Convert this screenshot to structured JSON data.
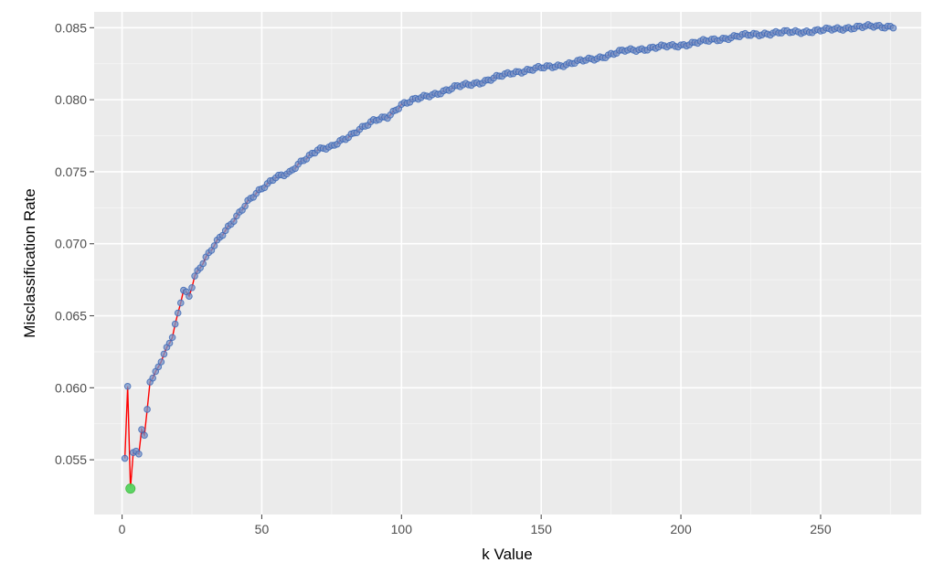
{
  "chart_data": {
    "type": "line",
    "title": "",
    "xlabel": "k Value",
    "ylabel": "Misclassification Rate",
    "xlim": [
      -10,
      286
    ],
    "ylim": [
      0.0512,
      0.0861
    ],
    "x_ticks": [
      0,
      50,
      100,
      150,
      200,
      250
    ],
    "x_tick_labels": [
      "0",
      "50",
      "100",
      "150",
      "200",
      "250"
    ],
    "y_ticks": [
      0.055,
      0.06,
      0.065,
      0.07,
      0.075,
      0.08,
      0.085
    ],
    "y_tick_labels": [
      "0.055",
      "0.060",
      "0.065",
      "0.070",
      "0.075",
      "0.080",
      "0.085"
    ],
    "grid": true,
    "colors": {
      "panel": "#ebebeb",
      "grid_major": "#ffffff",
      "line": "#ff0000",
      "points_fill": "#7896c8",
      "points_stroke": "#3a64b4",
      "highlight": "#55dd55"
    },
    "anchors": [
      [
        1,
        0.0551
      ],
      [
        2,
        0.0601
      ],
      [
        3,
        0.053
      ],
      [
        4,
        0.0555
      ],
      [
        5,
        0.0556
      ],
      [
        6,
        0.0554
      ],
      [
        7,
        0.0571
      ],
      [
        8,
        0.0567
      ],
      [
        9,
        0.0585
      ],
      [
        10,
        0.0604
      ],
      [
        12,
        0.0611
      ],
      [
        15,
        0.0623
      ],
      [
        18,
        0.0635
      ],
      [
        20,
        0.0651
      ],
      [
        22,
        0.0668
      ],
      [
        24,
        0.0664
      ],
      [
        26,
        0.0678
      ],
      [
        30,
        0.069
      ],
      [
        35,
        0.0704
      ],
      [
        40,
        0.0717
      ],
      [
        45,
        0.0729
      ],
      [
        50,
        0.0738
      ],
      [
        55,
        0.0747
      ],
      [
        60,
        0.0749
      ],
      [
        65,
        0.0758
      ],
      [
        70,
        0.0766
      ],
      [
        75,
        0.0767
      ],
      [
        80,
        0.0773
      ],
      [
        85,
        0.078
      ],
      [
        90,
        0.0785
      ],
      [
        95,
        0.0788
      ],
      [
        100,
        0.0797
      ],
      [
        110,
        0.0803
      ],
      [
        120,
        0.0809
      ],
      [
        130,
        0.0813
      ],
      [
        140,
        0.0819
      ],
      [
        150,
        0.0822
      ],
      [
        160,
        0.0825
      ],
      [
        170,
        0.0829
      ],
      [
        180,
        0.0834
      ],
      [
        190,
        0.0836
      ],
      [
        200,
        0.0838
      ],
      [
        210,
        0.0841
      ],
      [
        220,
        0.0844
      ],
      [
        230,
        0.0846
      ],
      [
        240,
        0.0847
      ],
      [
        250,
        0.0848
      ],
      [
        260,
        0.085
      ],
      [
        270,
        0.0851
      ],
      [
        276,
        0.0851
      ]
    ],
    "highlight_point": {
      "x": 3,
      "y": 0.053
    }
  }
}
